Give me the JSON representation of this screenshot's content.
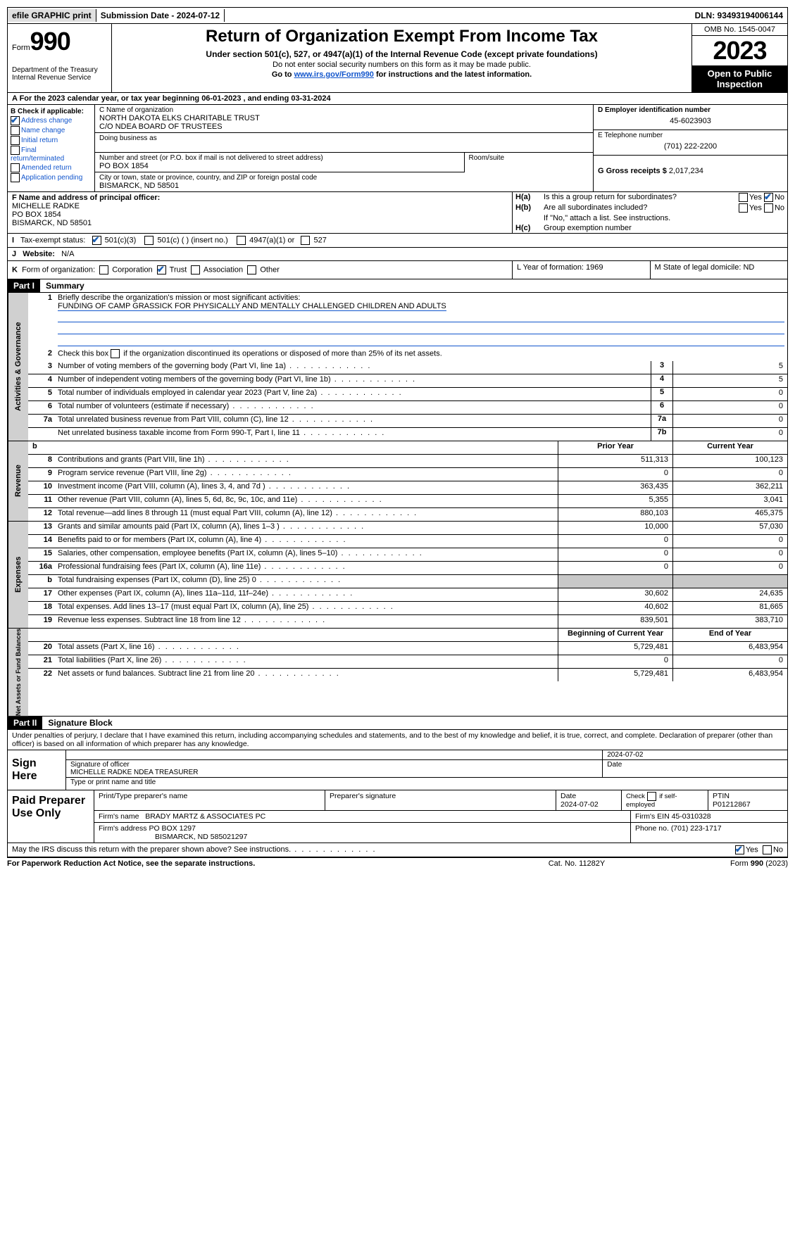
{
  "top_bar": {
    "efile": "efile GRAPHIC print",
    "submission_label": "Submission Date - 2024-07-12",
    "dln_label": "DLN: 93493194006144"
  },
  "header": {
    "form_word": "Form",
    "form_number": "990",
    "dept": "Department of the Treasury\nInternal Revenue Service",
    "title": "Return of Organization Exempt From Income Tax",
    "sub": "Under section 501(c), 527, or 4947(a)(1) of the Internal Revenue Code (except private foundations)",
    "sub2": "Do not enter social security numbers on this form as it may be made public.",
    "sub3_pre": "Go to ",
    "sub3_link": "www.irs.gov/Form990",
    "sub3_post": " for instructions and the latest information.",
    "omb": "OMB No. 1545-0047",
    "year": "2023",
    "open": "Open to Public Inspection"
  },
  "row_a": "A For the 2023 calendar year, or tax year beginning 06-01-2023    , and ending 03-31-2024",
  "section_b": {
    "title": "B Check if applicable:",
    "address_change": "Address change",
    "name_change": "Name change",
    "initial_return": "Initial return",
    "final_return": "Final return/terminated",
    "amended_return": "Amended return",
    "app_pending": "Application pending"
  },
  "section_c": {
    "name_lbl": "C Name of organization",
    "name1": "NORTH DAKOTA ELKS CHARITABLE TRUST",
    "name2": "C/O NDEA BOARD OF TRUSTEES",
    "dba_lbl": "Doing business as",
    "addr_lbl": "Number and street (or P.O. box if mail is not delivered to street address)",
    "room_lbl": "Room/suite",
    "addr": "PO BOX 1854",
    "city_lbl": "City or town, state or province, country, and ZIP or foreign postal code",
    "city": "BISMARCK, ND  58501"
  },
  "section_d": {
    "ein_lbl": "D Employer identification number",
    "ein": "45-6023903",
    "tel_lbl": "E Telephone number",
    "tel": "(701) 222-2200",
    "gross_lbl": "G Gross receipts $",
    "gross": "2,017,234"
  },
  "section_f": {
    "lbl": "F  Name and address of principal officer:",
    "name": "MICHELLE RADKE",
    "addr1": "PO BOX 1854",
    "addr2": "BISMARCK, ND  58501"
  },
  "section_h": {
    "ha_lbl": "H(a)",
    "ha_txt": "Is this a group return for subordinates?",
    "hb_lbl": "H(b)",
    "hb_txt": "Are all subordinates included?",
    "hb_note": "If \"No,\" attach a list. See instructions.",
    "hc_lbl": "H(c)",
    "hc_txt": "Group exemption number",
    "yes": "Yes",
    "no": "No"
  },
  "row_i": {
    "lbl": "I",
    "txt": "Tax-exempt status:",
    "c501c3": "501(c)(3)",
    "c501c": "501(c) (  ) (insert no.)",
    "c4947": "4947(a)(1) or",
    "c527": "527"
  },
  "row_j": {
    "lbl": "J",
    "txt": "Website:",
    "val": "N/A"
  },
  "row_k": {
    "lbl": "K",
    "txt": "Form of organization:",
    "corp": "Corporation",
    "trust": "Trust",
    "assoc": "Association",
    "other": "Other"
  },
  "row_l": {
    "txt": "L Year of formation: 1969"
  },
  "row_m": {
    "txt": "M State of legal domicile: ND"
  },
  "part1": {
    "part": "Part I",
    "title": "Summary",
    "line1_lbl": "1",
    "line1": "Briefly describe the organization's mission or most significant activities:",
    "mission": "FUNDING OF CAMP GRASSICK FOR PHYSICALLY AND MENTALLY CHALLENGED CHILDREN AND ADULTS",
    "line2_lbl": "2",
    "line2": "Check this box      if the organization discontinued its operations or disposed of more than 25% of its net assets.",
    "rows_gov": [
      {
        "n": "3",
        "d": "Number of voting members of the governing body (Part VI, line 1a)",
        "box": "3",
        "v": "5"
      },
      {
        "n": "4",
        "d": "Number of independent voting members of the governing body (Part VI, line 1b)",
        "box": "4",
        "v": "5"
      },
      {
        "n": "5",
        "d": "Total number of individuals employed in calendar year 2023 (Part V, line 2a)",
        "box": "5",
        "v": "0"
      },
      {
        "n": "6",
        "d": "Total number of volunteers (estimate if necessary)",
        "box": "6",
        "v": "0"
      },
      {
        "n": "7a",
        "d": "Total unrelated business revenue from Part VIII, column (C), line 12",
        "box": "7a",
        "v": "0"
      },
      {
        "n": "",
        "d": "Net unrelated business taxable income from Form 990-T, Part I, line 11",
        "box": "7b",
        "v": "0"
      }
    ],
    "hdr_b": "b",
    "hdr_prior": "Prior Year",
    "hdr_current": "Current Year",
    "rows_rev": [
      {
        "n": "8",
        "d": "Contributions and grants (Part VIII, line 1h)",
        "p": "511,313",
        "c": "100,123"
      },
      {
        "n": "9",
        "d": "Program service revenue (Part VIII, line 2g)",
        "p": "0",
        "c": "0"
      },
      {
        "n": "10",
        "d": "Investment income (Part VIII, column (A), lines 3, 4, and 7d )",
        "p": "363,435",
        "c": "362,211"
      },
      {
        "n": "11",
        "d": "Other revenue (Part VIII, column (A), lines 5, 6d, 8c, 9c, 10c, and 11e)",
        "p": "5,355",
        "c": "3,041"
      },
      {
        "n": "12",
        "d": "Total revenue—add lines 8 through 11 (must equal Part VIII, column (A), line 12)",
        "p": "880,103",
        "c": "465,375"
      }
    ],
    "rows_exp": [
      {
        "n": "13",
        "d": "Grants and similar amounts paid (Part IX, column (A), lines 1–3 )",
        "p": "10,000",
        "c": "57,030"
      },
      {
        "n": "14",
        "d": "Benefits paid to or for members (Part IX, column (A), line 4)",
        "p": "0",
        "c": "0"
      },
      {
        "n": "15",
        "d": "Salaries, other compensation, employee benefits (Part IX, column (A), lines 5–10)",
        "p": "0",
        "c": "0"
      },
      {
        "n": "16a",
        "d": "Professional fundraising fees (Part IX, column (A), line 11e)",
        "p": "0",
        "c": "0"
      },
      {
        "n": "b",
        "d": "Total fundraising expenses (Part IX, column (D), line 25) 0",
        "p": "grey",
        "c": "grey"
      },
      {
        "n": "17",
        "d": "Other expenses (Part IX, column (A), lines 11a–11d, 11f–24e)",
        "p": "30,602",
        "c": "24,635"
      },
      {
        "n": "18",
        "d": "Total expenses. Add lines 13–17 (must equal Part IX, column (A), line 25)",
        "p": "40,602",
        "c": "81,665"
      },
      {
        "n": "19",
        "d": "Revenue less expenses. Subtract line 18 from line 12",
        "p": "839,501",
        "c": "383,710"
      }
    ],
    "hdr_begin": "Beginning of Current Year",
    "hdr_end": "End of Year",
    "rows_net": [
      {
        "n": "20",
        "d": "Total assets (Part X, line 16)",
        "p": "5,729,481",
        "c": "6,483,954"
      },
      {
        "n": "21",
        "d": "Total liabilities (Part X, line 26)",
        "p": "0",
        "c": "0"
      },
      {
        "n": "22",
        "d": "Net assets or fund balances. Subtract line 21 from line 20",
        "p": "5,729,481",
        "c": "6,483,954"
      }
    ],
    "side_gov": "Activities & Governance",
    "side_rev": "Revenue",
    "side_exp": "Expenses",
    "side_net": "Net Assets or Fund Balances"
  },
  "part2": {
    "part": "Part II",
    "title": "Signature Block",
    "perjury": "Under penalties of perjury, I declare that I have examined this return, including accompanying schedules and statements, and to the best of my knowledge and belief, it is true, correct, and complete. Declaration of preparer (other than officer) is based on all information of which preparer has any knowledge.",
    "sign_here": "Sign Here",
    "sig_date": "2024-07-02",
    "sig_officer_lbl": "Signature of officer",
    "sig_officer": "MICHELLE RADKE NDEA TREASURER",
    "sig_type_lbl": "Type or print name and title",
    "date_lbl": "Date",
    "paid": "Paid Preparer Use Only",
    "prep_name_lbl": "Print/Type preparer's name",
    "prep_sig_lbl": "Preparer's signature",
    "prep_date_lbl": "Date",
    "prep_date": "2024-07-02",
    "self_emp": "Check       if self-employed",
    "ptin_lbl": "PTIN",
    "ptin": "P01212867",
    "firm_name_lbl": "Firm's name",
    "firm_name": "BRADY MARTZ & ASSOCIATES PC",
    "firm_ein_lbl": "Firm's EIN",
    "firm_ein": "45-0310328",
    "firm_addr_lbl": "Firm's address",
    "firm_addr1": "PO BOX 1297",
    "firm_addr2": "BISMARCK, ND  585021297",
    "phone_lbl": "Phone no.",
    "phone": "(701) 223-1717",
    "discuss": "May the IRS discuss this return with the preparer shown above? See instructions.",
    "yes": "Yes",
    "no": "No"
  },
  "footer": {
    "left": "For Paperwork Reduction Act Notice, see the separate instructions.",
    "center": "Cat. No. 11282Y",
    "right": "Form 990 (2023)"
  },
  "colors": {
    "link": "#1155cc",
    "black": "#000000",
    "grey": "#c8c8c8",
    "side": "#d0d0d0"
  }
}
